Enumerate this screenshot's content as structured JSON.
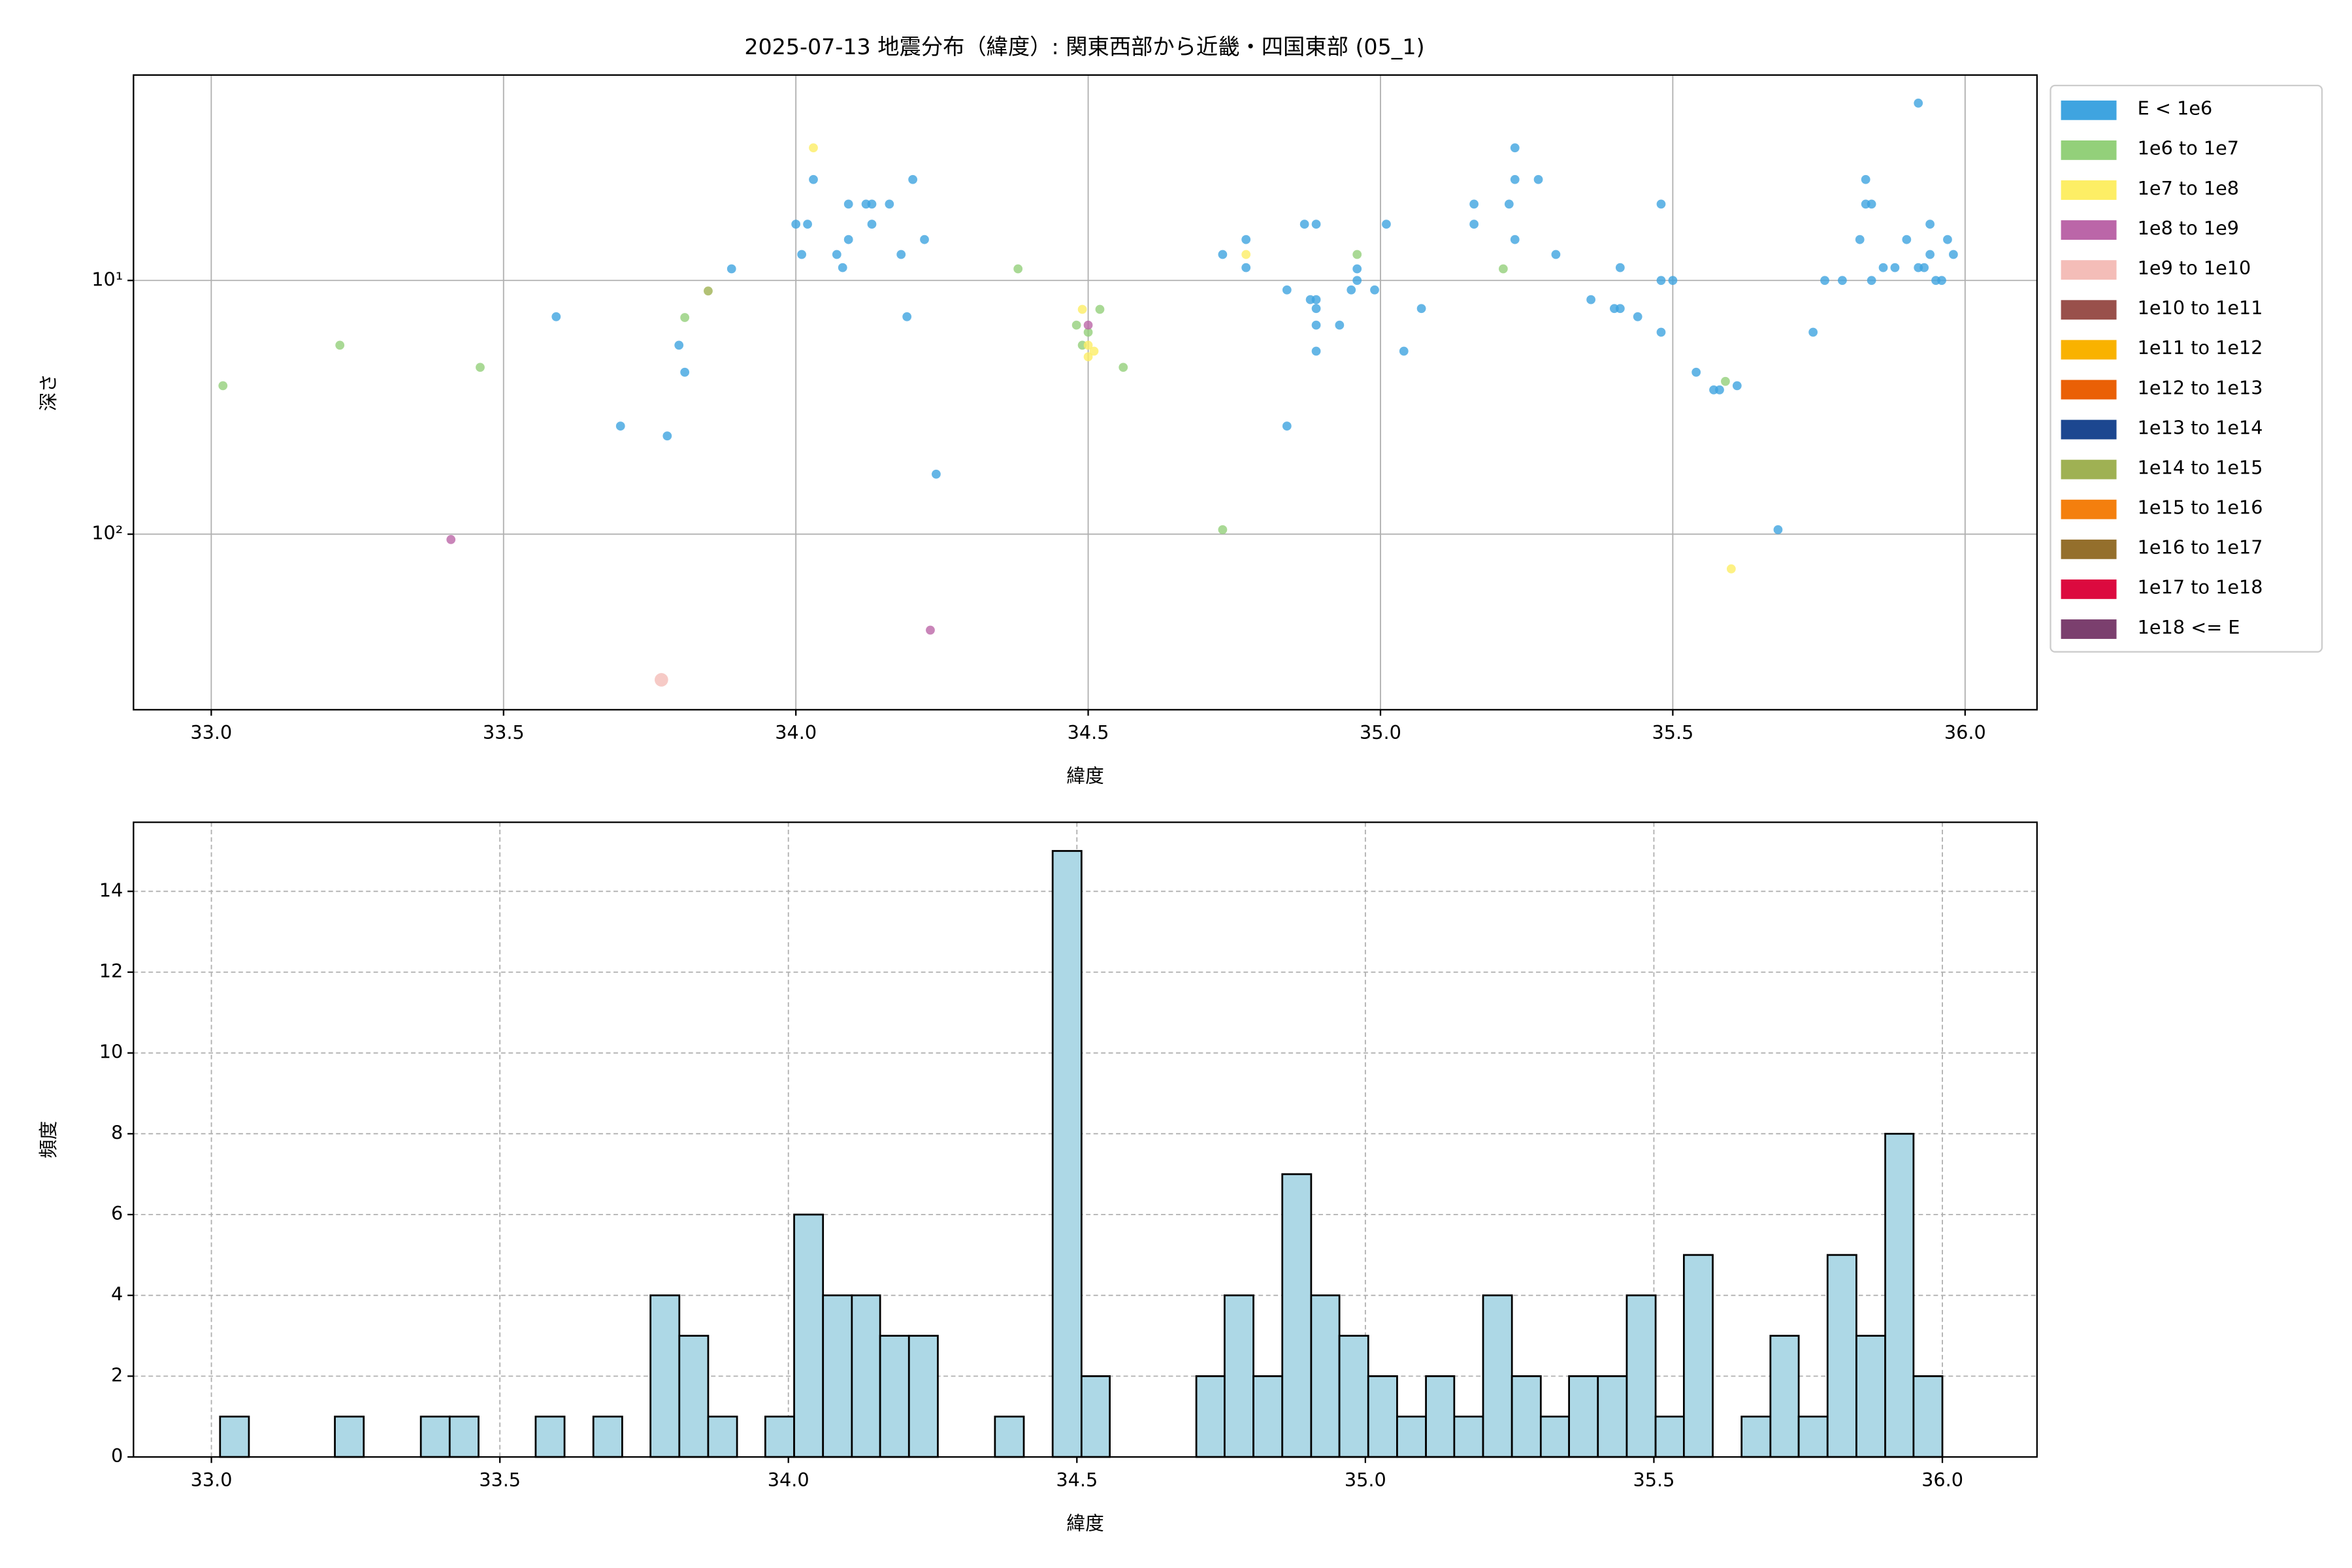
{
  "chart_data": [
    {
      "type": "scatter",
      "title": "2025-07-13 地震分布（緯度）: 関東西部から近畿・四国東部 (05_1)",
      "xlabel": "緯度",
      "ylabel": "深さ",
      "xlim": [
        32.867,
        36.123
      ],
      "ylim": [
        492,
        1.55
      ],
      "yscale": "log",
      "xticks": [
        {
          "value": 33,
          "label": "33.0"
        },
        {
          "value": 33.5,
          "label": "33.5"
        },
        {
          "value": 34,
          "label": "34.0"
        },
        {
          "value": 34.5,
          "label": "34.5"
        },
        {
          "value": 35,
          "label": "35.0"
        },
        {
          "value": 35.5,
          "label": "35.5"
        },
        {
          "value": 36,
          "label": "36.0"
        }
      ],
      "yticks": [
        {
          "value": 10,
          "label": "10¹"
        },
        {
          "value": 100,
          "label": "10²"
        }
      ],
      "grid": true,
      "legend": "outside-right",
      "series": [
        {
          "name": "E < 1e6",
          "color": "#3fa4e0",
          "x": [
            33.59,
            33.7,
            33.78,
            33.8,
            33.81,
            33.89,
            34.0,
            34.02,
            34.03,
            34.01,
            34.07,
            34.09,
            34.08,
            34.09,
            34.12,
            34.13,
            34.13,
            34.16,
            34.18,
            34.19,
            34.2,
            34.22,
            34.24,
            34.73,
            34.77,
            34.77,
            34.84,
            34.84,
            34.87,
            34.89,
            34.88,
            34.89,
            34.89,
            34.89,
            34.89,
            34.93,
            34.96,
            34.96,
            34.95,
            34.99,
            35.01,
            35.04,
            35.07,
            35.16,
            35.16,
            35.22,
            35.23,
            35.23,
            35.23,
            35.27,
            35.3,
            35.36,
            35.4,
            35.41,
            35.41,
            35.44,
            35.48,
            35.48,
            35.48,
            35.5,
            35.54,
            35.57,
            35.58,
            35.61,
            35.68,
            35.74,
            35.76,
            35.79,
            35.82,
            35.83,
            35.83,
            35.84,
            35.84,
            35.86,
            35.88,
            35.9,
            35.92,
            35.93,
            35.92,
            35.94,
            35.94,
            35.95,
            35.96,
            35.97,
            35.98
          ],
          "values": [
            13.9,
            37.5,
            41,
            18,
            23,
            9,
            6,
            6,
            4,
            7.9,
            7.9,
            5,
            8.9,
            6.9,
            5,
            5,
            6,
            5,
            7.9,
            13.9,
            4,
            6.9,
            58,
            7.9,
            6.9,
            8.9,
            10.9,
            37.5,
            6,
            6,
            11.9,
            11.9,
            12.9,
            15,
            19,
            15,
            9,
            10,
            10.9,
            10.9,
            6,
            19,
            12.9,
            5,
            6,
            5,
            4,
            3,
            6.9,
            4,
            7.9,
            11.9,
            12.9,
            12.9,
            8.9,
            13.9,
            5,
            16,
            10,
            10,
            23,
            27,
            27,
            26,
            96,
            16,
            10,
            10,
            6.9,
            4,
            5,
            5,
            10,
            8.9,
            8.9,
            6.9,
            8.9,
            8.9,
            2,
            6,
            7.9,
            10,
            10,
            6.9,
            7.9
          ]
        },
        {
          "name": "1e6 to 1e7",
          "color": "#93d07a",
          "x": [
            33.02,
            33.22,
            33.46,
            33.81,
            34.38,
            34.48,
            34.49,
            34.5,
            34.52,
            34.56,
            34.73,
            34.96,
            35.21,
            35.59
          ],
          "values": [
            26,
            18,
            22,
            14,
            9,
            15,
            18,
            16,
            13,
            22,
            96,
            7.9,
            9,
            25
          ]
        },
        {
          "name": "1e7 to 1e8",
          "color": "#fdee65",
          "x": [
            34.03,
            34.49,
            34.5,
            34.5,
            34.51,
            34.77,
            35.6
          ],
          "values": [
            3,
            13,
            20,
            18,
            19,
            7.9,
            137
          ]
        },
        {
          "name": "1e8 to 1e9",
          "color": "#bb66a8",
          "x": [
            33.41,
            34.23,
            34.5
          ],
          "values": [
            105,
            239,
            15
          ]
        },
        {
          "name": "1e9 to 1e10",
          "color": "#f4bdb8",
          "x": [
            33.77
          ],
          "values": [
            375
          ]
        },
        {
          "name": "1e10 to 1e11",
          "color": "#99504b",
          "x": [],
          "values": []
        },
        {
          "name": "1e11 to 1e12",
          "color": "#f9b200",
          "x": [],
          "values": []
        },
        {
          "name": "1e12 to 1e13",
          "color": "#ea6006",
          "x": [],
          "values": []
        },
        {
          "name": "1e13 to 1e14",
          "color": "#1c4790",
          "x": [],
          "values": []
        },
        {
          "name": "1e14 to 1e15",
          "color": "#9fb153",
          "x": [
            33.85
          ],
          "values": [
            11
          ]
        },
        {
          "name": "1e15 to 1e16",
          "color": "#f47f0e",
          "x": [],
          "values": []
        },
        {
          "name": "1e16 to 1e17",
          "color": "#946f2c",
          "x": [],
          "values": []
        },
        {
          "name": "1e17 to 1e18",
          "color": "#dc0a3f",
          "x": [],
          "values": []
        },
        {
          "name": "1e18 <= E",
          "color": "#7b3f6e",
          "x": [],
          "values": []
        }
      ]
    },
    {
      "type": "histogram",
      "xlabel": "緯度",
      "ylabel": "頻度",
      "xlim": [
        32.865,
        36.164
      ],
      "ylim": [
        0,
        15.71
      ],
      "xticks": [
        {
          "value": 33,
          "label": "33.0"
        },
        {
          "value": 33.5,
          "label": "33.5"
        },
        {
          "value": 34,
          "label": "34.0"
        },
        {
          "value": 34.5,
          "label": "34.5"
        },
        {
          "value": 35,
          "label": "35.0"
        },
        {
          "value": 35.5,
          "label": "35.5"
        },
        {
          "value": 36,
          "label": "36.0"
        }
      ],
      "yticks": [
        0,
        2,
        4,
        6,
        8,
        10,
        12,
        14
      ],
      "grid": true,
      "grid_style": "dashed",
      "color": "#add8e6",
      "edgecolor": "#000000",
      "bins": [
        33.015,
        33.065,
        33.115,
        33.164,
        33.214,
        33.264,
        33.314,
        33.363,
        33.413,
        33.463,
        33.513,
        33.562,
        33.612,
        33.662,
        33.712,
        33.761,
        33.811,
        33.861,
        33.911,
        33.96,
        34.01,
        34.06,
        34.11,
        34.159,
        34.209,
        34.259,
        34.309,
        34.358,
        34.408,
        34.458,
        34.508,
        34.557,
        34.607,
        34.657,
        34.707,
        34.756,
        34.806,
        34.856,
        34.906,
        34.955,
        35.005,
        35.055,
        35.105,
        35.154,
        35.204,
        35.254,
        35.304,
        35.353,
        35.403,
        35.453,
        35.503,
        35.552,
        35.602,
        35.652,
        35.702,
        35.751,
        35.801,
        35.851,
        35.901,
        35.95,
        36.0
      ],
      "values": [
        1,
        0,
        0,
        0,
        1,
        0,
        0,
        1,
        1,
        0,
        0,
        1,
        0,
        1,
        0,
        4,
        3,
        1,
        0,
        1,
        6,
        4,
        4,
        3,
        3,
        0,
        0,
        1,
        0,
        15,
        2,
        0,
        0,
        0,
        2,
        4,
        2,
        7,
        4,
        3,
        2,
        1,
        2,
        1,
        4,
        2,
        1,
        2,
        2,
        4,
        1,
        5,
        0,
        1,
        3,
        1,
        5,
        3,
        8,
        2
      ]
    }
  ]
}
